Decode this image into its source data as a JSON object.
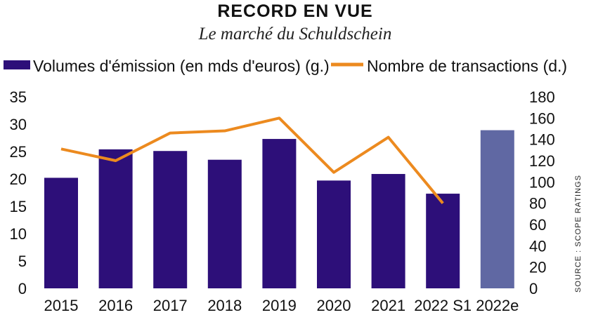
{
  "chart_data": {
    "type": "bar",
    "title": "RECORD EN VUE",
    "subtitle": "Le marché du Schuldschein",
    "categories": [
      "2015",
      "2016",
      "2017",
      "2018",
      "2019",
      "2020",
      "2021",
      "2022 S1",
      "2022e"
    ],
    "series": [
      {
        "name": "Volumes d'émission (en mds d'euros) (g.)",
        "type": "bar",
        "axis": "left",
        "color": "#2d0f79",
        "estimate_color": "#6068a3",
        "values": [
          20.2,
          25.4,
          25.1,
          23.5,
          27.3,
          19.7,
          20.9,
          17.3,
          28.9
        ]
      },
      {
        "name": "Nombre de transactions (d.)",
        "type": "line",
        "axis": "right",
        "color": "#ec8a1f",
        "values": [
          131,
          120,
          146,
          148,
          160,
          109,
          142,
          80,
          null
        ]
      }
    ],
    "y_left": {
      "range": [
        0,
        35
      ],
      "ticks": [
        "0",
        "5",
        "10",
        "15",
        "20",
        "25",
        "30",
        "35"
      ]
    },
    "y_right": {
      "range": [
        0,
        180
      ],
      "ticks": [
        "0",
        "20",
        "40",
        "60",
        "80",
        "100",
        "120",
        "140",
        "160",
        "180"
      ]
    },
    "legend_position": "top",
    "grid": false,
    "source": "SOURCE : SCOPE RATINGS"
  }
}
